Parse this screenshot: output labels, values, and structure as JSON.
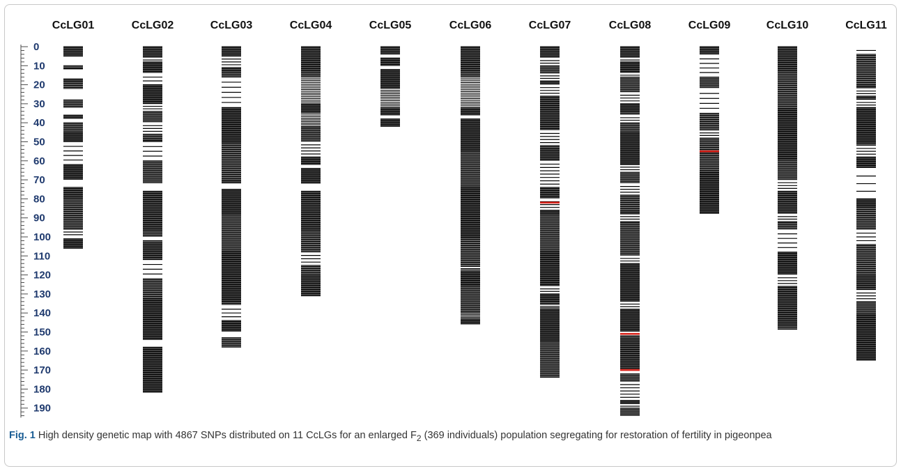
{
  "caption": {
    "fig_label": "Fig. 1",
    "text_before_sub": "High density genetic map with 4867 SNPs distributed on 11 CcLGs for an enlarged F",
    "subscript": "2",
    "text_after_sub": " (369 individuals) population segregating for restoration of fertility in pigeonpea"
  },
  "colors": {
    "marker": "#000000",
    "highlight": "#d9241c",
    "axis": "#4a4a4a",
    "tick_label": "#1f3a6e"
  },
  "chart_data": {
    "type": "genetic-map",
    "axis": {
      "unit": "cM",
      "min": 0,
      "max": 195,
      "major_step": 10,
      "minor_step": 2,
      "tick_labels": [
        "0",
        "10",
        "20",
        "30",
        "40",
        "50",
        "60",
        "70",
        "80",
        "90",
        "100",
        "110",
        "120",
        "130",
        "140",
        "150",
        "160",
        "170",
        "180",
        "190"
      ]
    },
    "linkage_groups": [
      {
        "name": "CcLG01",
        "length": 106,
        "highlights": [],
        "dense": [
          [
            0,
            5
          ],
          [
            10,
            12
          ],
          [
            17,
            22
          ],
          [
            28,
            32
          ],
          [
            36,
            38
          ],
          [
            40,
            50
          ],
          [
            62,
            70
          ],
          [
            74,
            96
          ],
          [
            101,
            106
          ]
        ],
        "sparse": [
          [
            5,
            28,
            2.5
          ],
          [
            50,
            62,
            4
          ],
          [
            96,
            101,
            2.5
          ]
        ]
      },
      {
        "name": "CcLG02",
        "length": 182,
        "highlights": [],
        "dense": [
          [
            0,
            6
          ],
          [
            8,
            14
          ],
          [
            20,
            30
          ],
          [
            34,
            40
          ],
          [
            46,
            50
          ],
          [
            60,
            72
          ],
          [
            76,
            100
          ],
          [
            102,
            112
          ],
          [
            122,
            154
          ],
          [
            158,
            182
          ]
        ],
        "sparse": [
          [
            6,
            8,
            1
          ],
          [
            14,
            20,
            2
          ],
          [
            30,
            34,
            2
          ],
          [
            40,
            46,
            3
          ],
          [
            50,
            60,
            3
          ],
          [
            112,
            122,
            3
          ]
        ]
      },
      {
        "name": "CcLG03",
        "length": 158,
        "highlights": [],
        "dense": [
          [
            0,
            5
          ],
          [
            11,
            16
          ],
          [
            32,
            72
          ],
          [
            75,
            136
          ],
          [
            144,
            150
          ],
          [
            153,
            158
          ]
        ],
        "sparse": [
          [
            5,
            11,
            3
          ],
          [
            16,
            32,
            5
          ],
          [
            136,
            144,
            3
          ]
        ]
      },
      {
        "name": "CcLG04",
        "length": 131,
        "highlights": [],
        "dense": [
          [
            0,
            16
          ],
          [
            30,
            35
          ],
          [
            42,
            50
          ],
          [
            58,
            62
          ],
          [
            64,
            72
          ],
          [
            76,
            108
          ],
          [
            115,
            131
          ]
        ],
        "sparse": [
          [
            16,
            30,
            14
          ],
          [
            35,
            42,
            7
          ],
          [
            50,
            58,
            4
          ],
          [
            108,
            115,
            3
          ]
        ]
      },
      {
        "name": "CcLG05",
        "length": 42,
        "highlights": [],
        "dense": [
          [
            0,
            4
          ],
          [
            6,
            10
          ],
          [
            12,
            22
          ],
          [
            32,
            36
          ],
          [
            38,
            42
          ]
        ],
        "sparse": [
          [
            22,
            32,
            10
          ]
        ]
      },
      {
        "name": "CcLG06",
        "length": 146,
        "highlights": [],
        "dense": [
          [
            0,
            16
          ],
          [
            32,
            36
          ],
          [
            38,
            116
          ],
          [
            118,
            140
          ],
          [
            143,
            146
          ]
        ],
        "sparse": [
          [
            16,
            32,
            16
          ],
          [
            116,
            118,
            2
          ],
          [
            140,
            143,
            3
          ]
        ]
      },
      {
        "name": "CcLG07",
        "length": 174,
        "highlights": [
          82
        ],
        "dense": [
          [
            0,
            6
          ],
          [
            10,
            14
          ],
          [
            18,
            20
          ],
          [
            26,
            44
          ],
          [
            52,
            60
          ],
          [
            74,
            80
          ],
          [
            86,
            126
          ],
          [
            130,
            136
          ],
          [
            138,
            174
          ]
        ],
        "sparse": [
          [
            6,
            10,
            2
          ],
          [
            14,
            18,
            2
          ],
          [
            20,
            26,
            3
          ],
          [
            44,
            52,
            4
          ],
          [
            60,
            74,
            7
          ],
          [
            80,
            86,
            3
          ],
          [
            126,
            130,
            2
          ],
          [
            136,
            138,
            2
          ]
        ]
      },
      {
        "name": "CcLG08",
        "length": 194,
        "highlights": [
          151,
          170
        ],
        "dense": [
          [
            0,
            6
          ],
          [
            8,
            14
          ],
          [
            16,
            24
          ],
          [
            30,
            36
          ],
          [
            40,
            62
          ],
          [
            66,
            72
          ],
          [
            78,
            88
          ],
          [
            92,
            110
          ],
          [
            114,
            134
          ],
          [
            138,
            150
          ],
          [
            152,
            170
          ],
          [
            172,
            176
          ],
          [
            186,
            188
          ],
          [
            190,
            194
          ]
        ],
        "sparse": [
          [
            6,
            8,
            1
          ],
          [
            14,
            16,
            1
          ],
          [
            24,
            30,
            3
          ],
          [
            36,
            40,
            2
          ],
          [
            62,
            66,
            2
          ],
          [
            72,
            78,
            3
          ],
          [
            88,
            92,
            2
          ],
          [
            110,
            114,
            2
          ],
          [
            134,
            138,
            2
          ],
          [
            176,
            186,
            5
          ],
          [
            188,
            190,
            1
          ]
        ]
      },
      {
        "name": "CcLG09",
        "length": 88,
        "highlights": [
          55
        ],
        "dense": [
          [
            0,
            4
          ],
          [
            16,
            22
          ],
          [
            35,
            44
          ],
          [
            48,
            88
          ]
        ],
        "sparse": [
          [
            4,
            16,
            4
          ],
          [
            22,
            35,
            4
          ],
          [
            44,
            48,
            2
          ]
        ]
      },
      {
        "name": "CcLG10",
        "length": 149,
        "highlights": [],
        "dense": [
          [
            0,
            70
          ],
          [
            76,
            88
          ],
          [
            92,
            96
          ],
          [
            108,
            120
          ],
          [
            126,
            149
          ]
        ],
        "sparse": [
          [
            70,
            76,
            3
          ],
          [
            88,
            92,
            2
          ],
          [
            96,
            108,
            4
          ],
          [
            120,
            126,
            3
          ]
        ]
      },
      {
        "name": "CcLG11",
        "length": 165,
        "highlights": [],
        "dense": [
          [
            4,
            22
          ],
          [
            26,
            28
          ],
          [
            32,
            52
          ],
          [
            58,
            64
          ],
          [
            80,
            96
          ],
          [
            104,
            128
          ],
          [
            134,
            165
          ]
        ],
        "sparse": [
          [
            0,
            4,
            1
          ],
          [
            22,
            26,
            2
          ],
          [
            28,
            32,
            2
          ],
          [
            52,
            58,
            3
          ],
          [
            64,
            80,
            3
          ],
          [
            96,
            104,
            3
          ],
          [
            128,
            134,
            3
          ]
        ]
      }
    ]
  }
}
